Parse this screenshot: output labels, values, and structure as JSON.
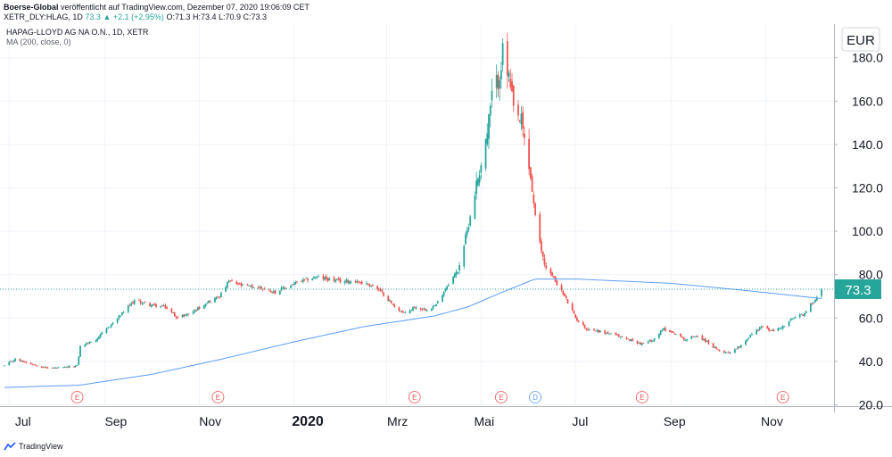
{
  "header": {
    "author": "Boerse-Global",
    "published_text": "veröffentlicht auf TradingView.com, Dezember 07, 2020 19:06:09 CET",
    "ticker_line_prefix": "XETR_DLY:HLAG, 1D",
    "last": "73.3",
    "change": "+2.1 (+2.95%)",
    "ohlc": "O:71.3 H:73.4 L:70.9 C:73.3"
  },
  "legend": {
    "title": "HAPAG-LLOYD AG NA O.N., 1D, XETR",
    "indicator": "MA (200, close, 0)"
  },
  "footer": {
    "brand": "TradingView"
  },
  "colors": {
    "up": "#26a69a",
    "down": "#ef5350",
    "ma": "#5b9cf6",
    "price_badge": "#26a69a",
    "grid": "#f0f3fa"
  },
  "chart_data": {
    "type": "candlestick",
    "currency": "EUR",
    "last_price": 73.3,
    "y_ticks": [
      "180.0",
      "160.0",
      "140.0",
      "120.0",
      "100.0",
      "80.0",
      "60.0",
      "40.0",
      "20.0"
    ],
    "x_ticks": [
      "Jul",
      "Sep",
      "Nov",
      "2020",
      "Mrz",
      "Mai",
      "Jul",
      "Sep",
      "Nov"
    ],
    "ylim": [
      20,
      190
    ],
    "grid": true,
    "event_markers": [
      {
        "label": "E",
        "x": "2019-08-14",
        "color": "#ef5350"
      },
      {
        "label": "E",
        "x": "2019-11-13",
        "color": "#ef5350"
      },
      {
        "label": "E",
        "x": "2020-03-19",
        "color": "#ef5350"
      },
      {
        "label": "E",
        "x": "2020-05-14",
        "color": "#ef5350"
      },
      {
        "label": "D",
        "x": "2020-06-05",
        "color": "#5b9cf6"
      },
      {
        "label": "E",
        "x": "2020-08-13",
        "color": "#ef5350"
      },
      {
        "label": "E",
        "x": "2020-11-12",
        "color": "#ef5350"
      }
    ],
    "price_path": [
      [
        "2019-06-28",
        38
      ],
      [
        "2019-07-05",
        41
      ],
      [
        "2019-07-15",
        39
      ],
      [
        "2019-07-25",
        37
      ],
      [
        "2019-08-05",
        37
      ],
      [
        "2019-08-14",
        38
      ],
      [
        "2019-08-16",
        47
      ],
      [
        "2019-08-26",
        50
      ],
      [
        "2019-09-05",
        57
      ],
      [
        "2019-09-12",
        62
      ],
      [
        "2019-09-20",
        68
      ],
      [
        "2019-10-01",
        66
      ],
      [
        "2019-10-10",
        65
      ],
      [
        "2019-10-18",
        60
      ],
      [
        "2019-10-28",
        63
      ],
      [
        "2019-11-05",
        67
      ],
      [
        "2019-11-14",
        70
      ],
      [
        "2019-11-20",
        77
      ],
      [
        "2019-11-28",
        75
      ],
      [
        "2019-12-10",
        74
      ],
      [
        "2019-12-20",
        72
      ],
      [
        "2020-01-02",
        76
      ],
      [
        "2020-01-15",
        79
      ],
      [
        "2020-01-30",
        77
      ],
      [
        "2020-02-10",
        77
      ],
      [
        "2020-02-21",
        75
      ],
      [
        "2020-02-28",
        71
      ],
      [
        "2020-03-05",
        66
      ],
      [
        "2020-03-12",
        62
      ],
      [
        "2020-03-19",
        65
      ],
      [
        "2020-03-26",
        64
      ],
      [
        "2020-04-02",
        66
      ],
      [
        "2020-04-09",
        75
      ],
      [
        "2020-04-16",
        82
      ],
      [
        "2020-04-22",
        100
      ],
      [
        "2020-04-29",
        125
      ],
      [
        "2020-05-05",
        145
      ],
      [
        "2020-05-08",
        162
      ],
      [
        "2020-05-12",
        170
      ],
      [
        "2020-05-15",
        182
      ],
      [
        "2020-05-19",
        170
      ],
      [
        "2020-05-22",
        155
      ],
      [
        "2020-05-27",
        150
      ],
      [
        "2020-06-02",
        125
      ],
      [
        "2020-06-06",
        100
      ],
      [
        "2020-06-11",
        85
      ],
      [
        "2020-06-18",
        77
      ],
      [
        "2020-06-24",
        70
      ],
      [
        "2020-07-01",
        60
      ],
      [
        "2020-07-08",
        55
      ],
      [
        "2020-07-16",
        54
      ],
      [
        "2020-07-27",
        52
      ],
      [
        "2020-08-05",
        50
      ],
      [
        "2020-08-13",
        48
      ],
      [
        "2020-08-20",
        50
      ],
      [
        "2020-08-27",
        55
      ],
      [
        "2020-09-03",
        53
      ],
      [
        "2020-09-10",
        50
      ],
      [
        "2020-09-17",
        52
      ],
      [
        "2020-09-24",
        49
      ],
      [
        "2020-10-01",
        45
      ],
      [
        "2020-10-08",
        44
      ],
      [
        "2020-10-15",
        47
      ],
      [
        "2020-10-22",
        52
      ],
      [
        "2020-10-29",
        56
      ],
      [
        "2020-11-05",
        54
      ],
      [
        "2020-11-12",
        56
      ],
      [
        "2020-11-19",
        60
      ],
      [
        "2020-11-26",
        62
      ],
      [
        "2020-12-03",
        69
      ],
      [
        "2020-12-07",
        73.3
      ]
    ],
    "ma200_path": [
      [
        "2019-06-28",
        28
      ],
      [
        "2019-08-15",
        29
      ],
      [
        "2019-10-01",
        34
      ],
      [
        "2019-11-15",
        41
      ],
      [
        "2020-01-01",
        49
      ],
      [
        "2020-02-15",
        56
      ],
      [
        "2020-04-01",
        61
      ],
      [
        "2020-04-22",
        65
      ],
      [
        "2020-05-15",
        72
      ],
      [
        "2020-06-05",
        78
      ],
      [
        "2020-07-01",
        78
      ],
      [
        "2020-09-01",
        76
      ],
      [
        "2020-10-15",
        73
      ],
      [
        "2020-12-07",
        69
      ]
    ]
  }
}
